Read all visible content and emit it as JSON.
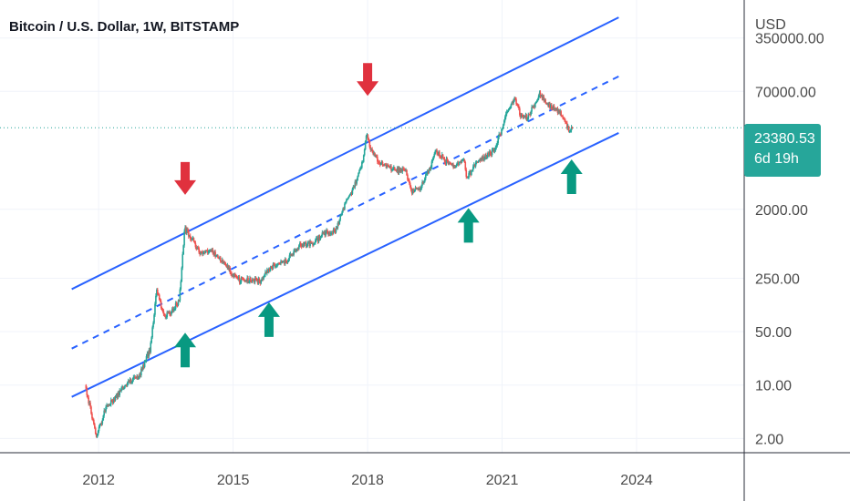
{
  "header": {
    "title": "Bitcoin / U.S. Dollar, 1W, BITSTAMP"
  },
  "price_axis": {
    "currency": "USD"
  },
  "last_price": {
    "value": "23380.53",
    "countdown": "6d 19h"
  },
  "colors": {
    "up": "#26a69a",
    "down": "#ef5350",
    "channel": "#2962ff",
    "arrow_top": "#e0313e",
    "arrow_bottom": "#089981",
    "price_label": "#26a69a"
  },
  "icons": {
    "top_marker": "arrow-down-icon",
    "bottom_marker": "arrow-up-icon"
  },
  "chart_data": {
    "type": "candlestick",
    "title": "Bitcoin / U.S. Dollar, 1W, BITSTAMP",
    "interval": "1W",
    "exchange": "BITSTAMP",
    "y_scale": "log",
    "ylabel": "USD",
    "y_ticks": [
      2,
      10,
      50,
      250,
      2000,
      70000,
      350000
    ],
    "y_tick_labels": [
      "2.00",
      "10.00",
      "50.00",
      "250.00",
      "2000.00",
      "70000.00",
      "350000.00"
    ],
    "x_ticks": [
      2012,
      2015,
      2018,
      2021,
      2024
    ],
    "x_tick_labels": [
      "2012",
      "2015",
      "2018",
      "2021",
      "2024"
    ],
    "xlim": [
      2009.8,
      2026.4
    ],
    "ylim": [
      1.3,
      1100000
    ],
    "grid": true,
    "last_price": 23380.53,
    "price_path": [
      [
        2011.7,
        10
      ],
      [
        2011.95,
        2.1
      ],
      [
        2012.15,
        4.8
      ],
      [
        2012.6,
        10
      ],
      [
        2012.9,
        13
      ],
      [
        2013.15,
        30
      ],
      [
        2013.3,
        180
      ],
      [
        2013.45,
        80
      ],
      [
        2013.6,
        90
      ],
      [
        2013.8,
        130
      ],
      [
        2013.92,
        1100
      ],
      [
        2014.1,
        800
      ],
      [
        2014.25,
        550
      ],
      [
        2014.5,
        600
      ],
      [
        2014.8,
        380
      ],
      [
        2015.1,
        240
      ],
      [
        2015.6,
        230
      ],
      [
        2015.9,
        380
      ],
      [
        2016.2,
        420
      ],
      [
        2016.5,
        700
      ],
      [
        2016.8,
        720
      ],
      [
        2017.0,
        950
      ],
      [
        2017.3,
        1100
      ],
      [
        2017.5,
        2400
      ],
      [
        2017.7,
        4000
      ],
      [
        2017.9,
        9000
      ],
      [
        2017.97,
        19000
      ],
      [
        2018.1,
        11000
      ],
      [
        2018.3,
        8000
      ],
      [
        2018.6,
        6500
      ],
      [
        2018.85,
        6300
      ],
      [
        2018.97,
        3400
      ],
      [
        2019.2,
        4000
      ],
      [
        2019.45,
        8500
      ],
      [
        2019.5,
        12000
      ],
      [
        2019.8,
        8000
      ],
      [
        2019.95,
        7200
      ],
      [
        2020.15,
        9500
      ],
      [
        2020.2,
        5000
      ],
      [
        2020.5,
        9200
      ],
      [
        2020.8,
        11500
      ],
      [
        2020.95,
        19000
      ],
      [
        2021.1,
        35000
      ],
      [
        2021.28,
        60000
      ],
      [
        2021.4,
        35000
      ],
      [
        2021.55,
        31000
      ],
      [
        2021.75,
        50000
      ],
      [
        2021.85,
        66000
      ],
      [
        2022.0,
        47000
      ],
      [
        2022.2,
        42000
      ],
      [
        2022.4,
        30000
      ],
      [
        2022.5,
        20000
      ],
      [
        2022.58,
        23380.53
      ]
    ],
    "channel_lines": [
      {
        "style": "solid",
        "points": [
          [
            2011.4,
            180
          ],
          [
            2023.6,
            650000
          ]
        ]
      },
      {
        "style": "dashed",
        "points": [
          [
            2011.4,
            30
          ],
          [
            2023.6,
            110000
          ]
        ]
      },
      {
        "style": "solid",
        "points": [
          [
            2011.4,
            7
          ],
          [
            2023.6,
            20000
          ]
        ]
      }
    ],
    "annotations": [
      {
        "type": "arrow-down",
        "x": 2013.93,
        "y": 4300
      },
      {
        "type": "arrow-down",
        "x": 2018.0,
        "y": 85000
      },
      {
        "type": "arrow-up",
        "x": 2013.93,
        "y": 28
      },
      {
        "type": "arrow-up",
        "x": 2015.8,
        "y": 70
      },
      {
        "type": "arrow-up",
        "x": 2020.25,
        "y": 1200
      },
      {
        "type": "arrow-up",
        "x": 2022.55,
        "y": 5200
      }
    ]
  }
}
